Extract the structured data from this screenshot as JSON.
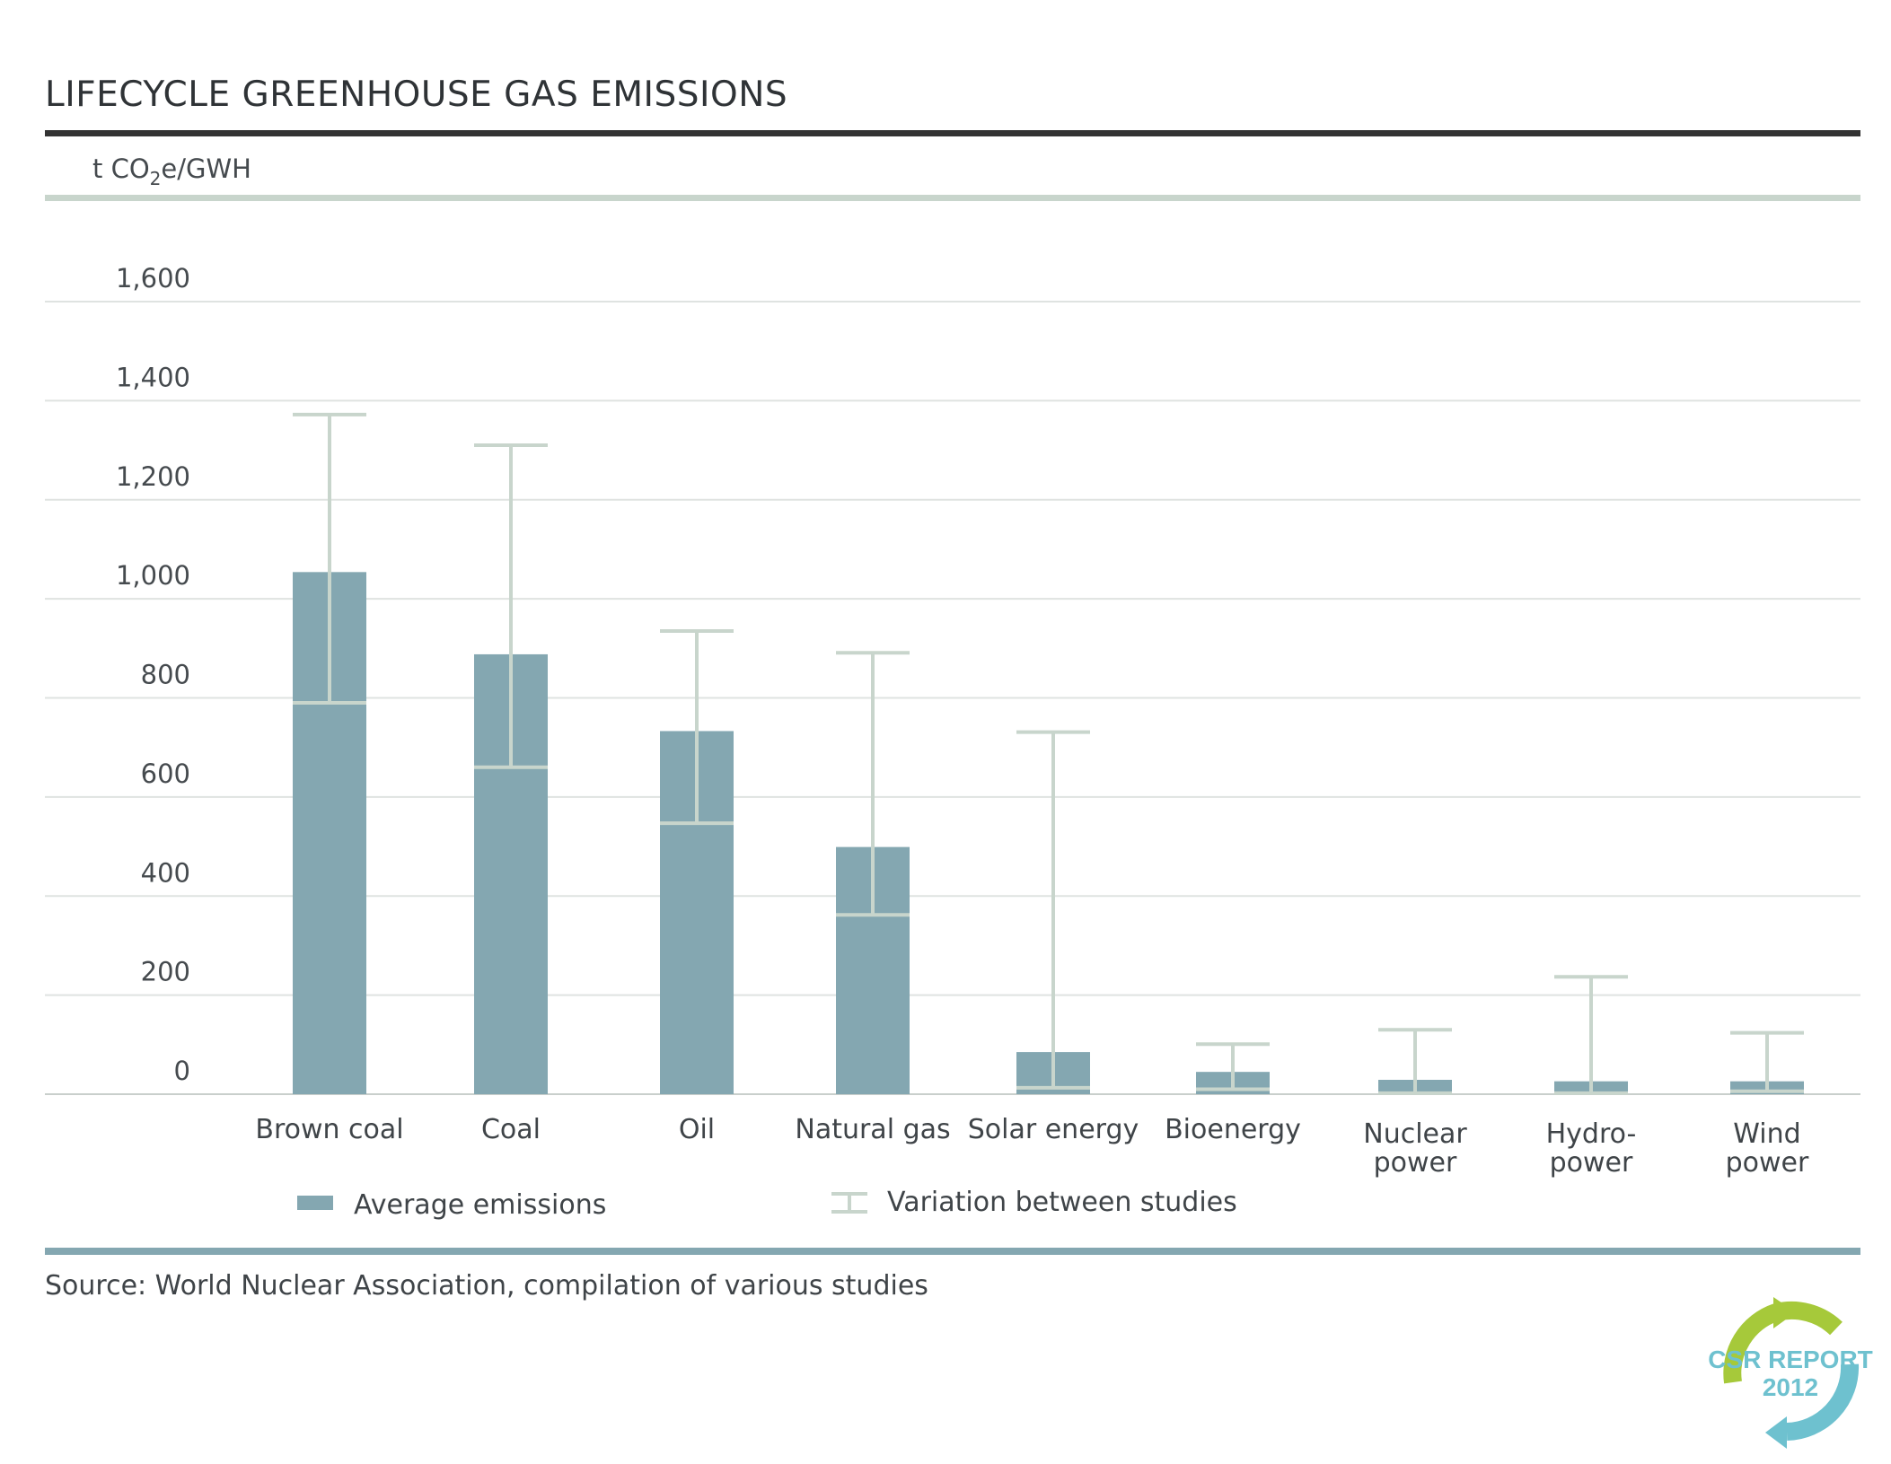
{
  "header": {
    "title": "LIFECYCLE GREENHOUSE GAS EMISSIONS",
    "unit_prefix": "t CO",
    "unit_subscript": "2",
    "unit_suffix": "e/GWH"
  },
  "legend": {
    "average_label": "Average emissions",
    "variation_label": "Variation between studies"
  },
  "source": "Source: World Nuclear Association, compilation of various studies",
  "logo": {
    "line1": "CSR REPORT",
    "line2": "2012"
  },
  "colors": {
    "bar": "#84a7b1",
    "whisker": "#c8d5cc",
    "header_rule": "#333333",
    "unit_rule": "#c8d5cc",
    "footer_rule": "#84a7b1",
    "logo_green": "#a6c93a",
    "logo_blue": "#6ec1cf"
  },
  "chart_data": {
    "type": "bar",
    "title": "LIFECYCLE GREENHOUSE GAS EMISSIONS",
    "ylabel": "t CO2e/GWH",
    "xlabel": "",
    "ylim": [
      0,
      1600
    ],
    "yticks": [
      {
        "value": 0,
        "label": "0"
      },
      {
        "value": 200,
        "label": "200"
      },
      {
        "value": 400,
        "label": "400"
      },
      {
        "value": 600,
        "label": "600"
      },
      {
        "value": 800,
        "label": "800"
      },
      {
        "value": 1000,
        "label": "1,000"
      },
      {
        "value": 1200,
        "label": "1,200"
      },
      {
        "value": 1400,
        "label": "1,400"
      },
      {
        "value": 1600,
        "label": "1,600"
      }
    ],
    "grid": true,
    "legend_position": "bottom",
    "categories": [
      [
        "Brown coal"
      ],
      [
        "Coal"
      ],
      [
        "Oil"
      ],
      [
        "Natural gas"
      ],
      [
        "Solar energy"
      ],
      [
        "Bioenergy"
      ],
      [
        "Nuclear",
        "power"
      ],
      [
        "Hydro-",
        "power"
      ],
      [
        "Wind",
        "power"
      ]
    ],
    "series": [
      {
        "name": "Average emissions",
        "values": [
          1054,
          888,
          733,
          499,
          85,
          45,
          29,
          26,
          26
        ]
      }
    ],
    "variation": {
      "name": "Variation between studies",
      "low": [
        790,
        660,
        547,
        362,
        13,
        10,
        2,
        2,
        6
      ],
      "high": [
        1372,
        1310,
        935,
        891,
        731,
        101,
        130,
        237,
        124
      ]
    }
  }
}
